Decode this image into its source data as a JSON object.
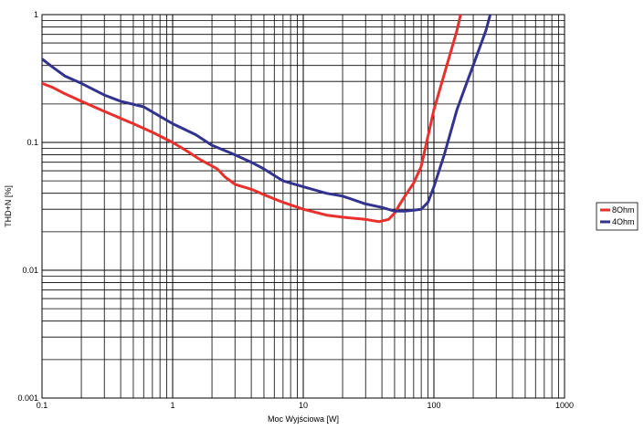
{
  "chart_data": {
    "type": "line",
    "title": "",
    "xlabel": "Moc Wyjściowa [W]",
    "ylabel": "THD+N [%]",
    "x_scale": "log",
    "y_scale": "log",
    "xlim": [
      0.1,
      1000
    ],
    "ylim": [
      0.001,
      1
    ],
    "grid": true,
    "legend_position": "right",
    "x_tick_labels": [
      "0.1",
      "1",
      "10",
      "100",
      "1000"
    ],
    "y_tick_labels": [
      "0.001",
      "0.01",
      "0.1",
      "1"
    ],
    "series": [
      {
        "name": "8Ohm",
        "color": "#e8302c",
        "x": [
          0.1,
          0.12,
          0.15,
          0.2,
          0.3,
          0.5,
          0.7,
          1,
          1.3,
          1.6,
          2.2,
          2.5,
          3,
          4,
          5,
          7,
          10,
          15,
          20,
          30,
          38,
          45,
          50,
          55,
          60,
          70,
          80,
          100,
          150,
          160
        ],
        "y": [
          0.29,
          0.27,
          0.24,
          0.21,
          0.175,
          0.14,
          0.12,
          0.1,
          0.085,
          0.074,
          0.062,
          0.054,
          0.047,
          0.043,
          0.039,
          0.034,
          0.03,
          0.027,
          0.026,
          0.025,
          0.024,
          0.025,
          0.028,
          0.033,
          0.038,
          0.048,
          0.065,
          0.18,
          0.75,
          1.0
        ]
      },
      {
        "name": "4Ohm",
        "color": "#33338f",
        "x": [
          0.1,
          0.12,
          0.15,
          0.2,
          0.3,
          0.4,
          0.6,
          0.8,
          1,
          1.5,
          2,
          3,
          4,
          5,
          7,
          10,
          15,
          20,
          30,
          40,
          50,
          60,
          70,
          80,
          90,
          100,
          120,
          150,
          180,
          200,
          250,
          270
        ],
        "y": [
          0.45,
          0.39,
          0.33,
          0.29,
          0.235,
          0.21,
          0.19,
          0.16,
          0.14,
          0.115,
          0.095,
          0.08,
          0.07,
          0.062,
          0.05,
          0.045,
          0.04,
          0.038,
          0.033,
          0.031,
          0.029,
          0.029,
          0.0295,
          0.03,
          0.034,
          0.045,
          0.08,
          0.18,
          0.3,
          0.4,
          0.75,
          1.0
        ]
      }
    ]
  }
}
